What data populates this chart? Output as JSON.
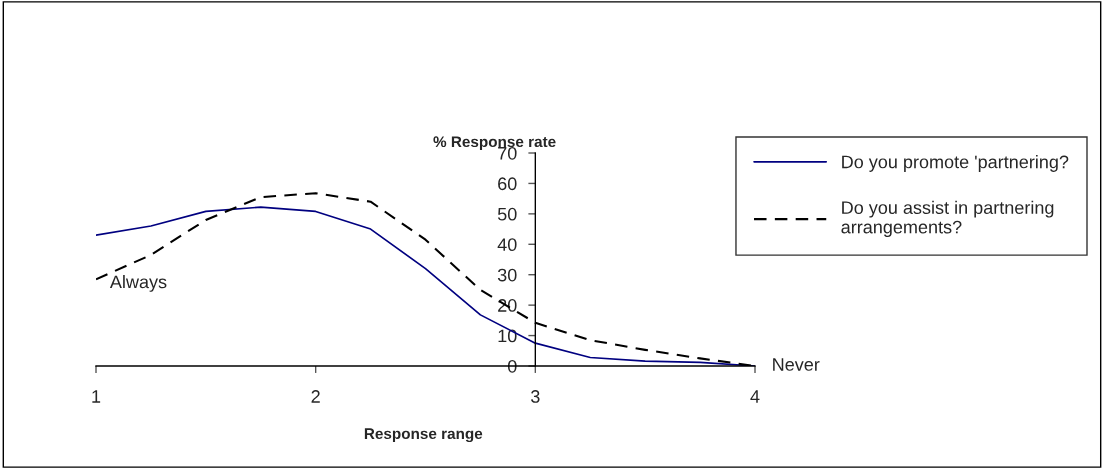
{
  "chart_data": {
    "type": "line",
    "xlabel": "Response range",
    "ylabel": "% Response rate",
    "x": [
      1,
      1.25,
      1.5,
      1.75,
      2,
      2.25,
      2.5,
      2.75,
      3,
      3.25,
      3.5,
      3.75,
      4
    ],
    "series": [
      {
        "name": "Do you promote 'partnering?",
        "color": "#000080",
        "line_style": "solid",
        "values": [
          43,
          46,
          50.8,
          52.2,
          50.8,
          45,
          32,
          16.8,
          7.5,
          2.8,
          1.6,
          1.2,
          0
        ]
      },
      {
        "name": "Do you assist in partnering arrangements?",
        "color": "#000000",
        "line_style": "dashed",
        "values": [
          28.5,
          36.5,
          48,
          55.5,
          56.8,
          54,
          41.5,
          25,
          14.2,
          8.5,
          5.3,
          2.5,
          0
        ]
      }
    ],
    "xlim": [
      1,
      4
    ],
    "xticks": [
      1,
      2,
      3,
      4
    ],
    "ylim": [
      0,
      70
    ],
    "yticks": [
      0,
      10,
      20,
      30,
      40,
      50,
      60,
      70
    ],
    "grid": false,
    "legend": "top right",
    "marker": "none",
    "annotations": [
      {
        "text": "Always",
        "x": 1,
        "y": 28.5
      },
      {
        "text": "Never",
        "x": 4,
        "y": 0
      }
    ]
  }
}
